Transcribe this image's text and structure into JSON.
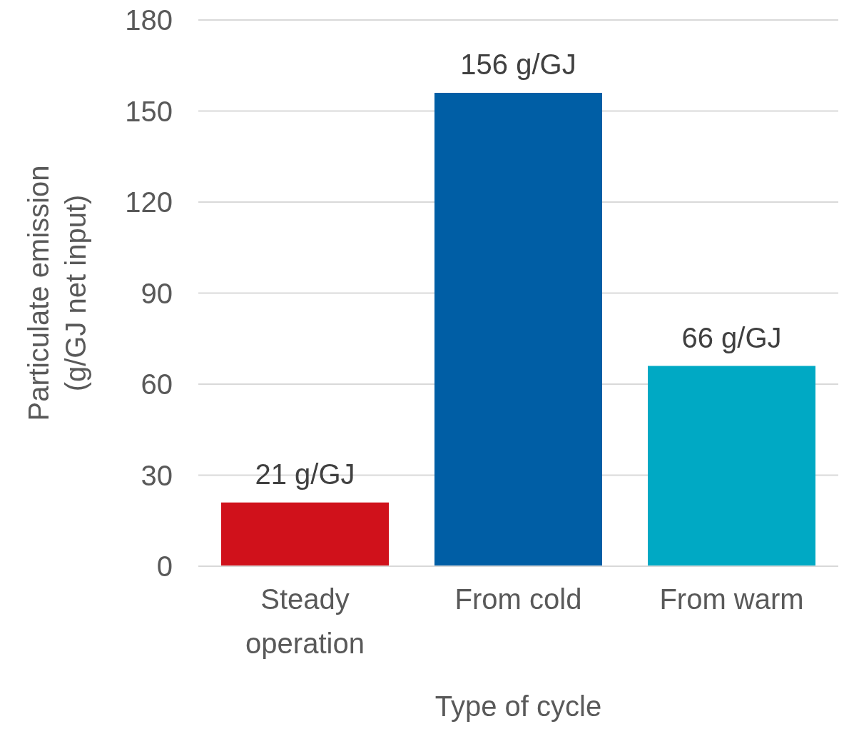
{
  "chart_data": {
    "type": "bar",
    "xlabel": "Type of cycle",
    "ylabel": "Particulate emission (g/GJ net input)",
    "categories": [
      "Steady operation",
      "From cold",
      "From warm"
    ],
    "values": [
      21,
      156,
      66
    ],
    "colors": [
      "#d0111b",
      "#005ea5",
      "#00a9c4"
    ],
    "value_labels": [
      "21 g/GJ",
      "156 g/GJ",
      "66 g/GJ"
    ],
    "ylim": [
      0,
      180
    ],
    "yticks": [
      0,
      30,
      60,
      90,
      120,
      150,
      180
    ],
    "grid": "y"
  }
}
